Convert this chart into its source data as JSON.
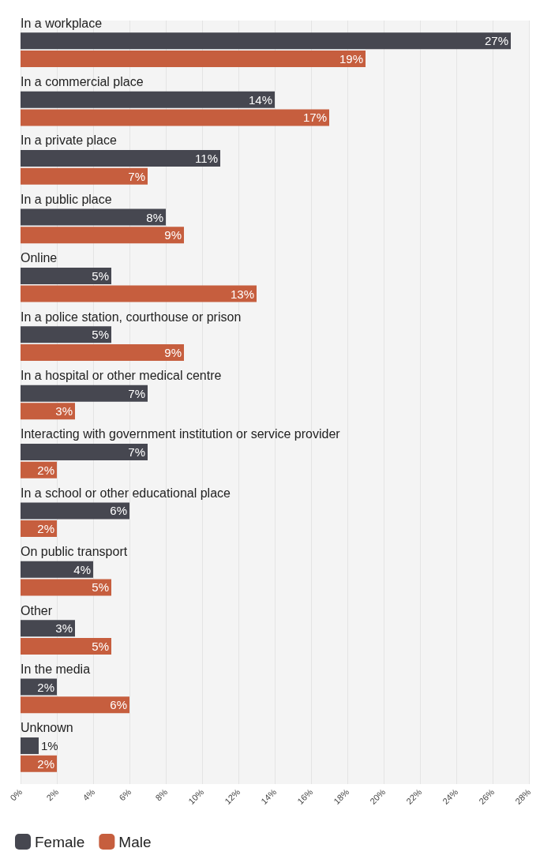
{
  "chart_data": {
    "type": "bar",
    "orientation": "horizontal",
    "categories": [
      "In a workplace",
      "In a commercial place",
      "In a private place",
      "In a public place",
      "Online",
      "In a police station, courthouse or prison",
      "In a hospital or other medical centre",
      "Interacting with government institution or service provider",
      "In a school or other educational place",
      "On public transport",
      "Other",
      "In the media",
      "Unknown"
    ],
    "series": [
      {
        "name": "Female",
        "color": "#464750",
        "values": [
          27,
          14,
          11,
          8,
          5,
          5,
          7,
          7,
          6,
          4,
          3,
          2,
          1
        ],
        "value_labels": [
          "27%",
          "14%",
          "11%",
          "8%",
          "5%",
          "5%",
          "7%",
          "7%",
          "6%",
          "4%",
          "3%",
          "2%",
          "1%"
        ]
      },
      {
        "name": "Male",
        "color": "#c65e3e",
        "values": [
          19,
          17,
          7,
          9,
          13,
          9,
          3,
          2,
          2,
          5,
          5,
          6,
          2
        ],
        "value_labels": [
          "19%",
          "17%",
          "7%",
          "9%",
          "13%",
          "9%",
          "3%",
          "2%",
          "2%",
          "5%",
          "5%",
          "6%",
          "2%"
        ]
      }
    ],
    "xlim": [
      0,
      28
    ],
    "xticks": [
      {
        "value": 0,
        "label": "0%"
      },
      {
        "value": 2,
        "label": "2%"
      },
      {
        "value": 4,
        "label": "4%"
      },
      {
        "value": 6,
        "label": "6%"
      },
      {
        "value": 8,
        "label": "8%"
      },
      {
        "value": 10,
        "label": "10%"
      },
      {
        "value": 12,
        "label": "12%"
      },
      {
        "value": 14,
        "label": "14%"
      },
      {
        "value": 16,
        "label": "16%"
      },
      {
        "value": 18,
        "label": "18%"
      },
      {
        "value": 20,
        "label": "20%"
      },
      {
        "value": 22,
        "label": "22%"
      },
      {
        "value": 24,
        "label": "24%"
      },
      {
        "value": 26,
        "label": "26%"
      },
      {
        "value": 28,
        "label": "28%"
      }
    ],
    "grid": "x",
    "legend": "bottom left"
  }
}
